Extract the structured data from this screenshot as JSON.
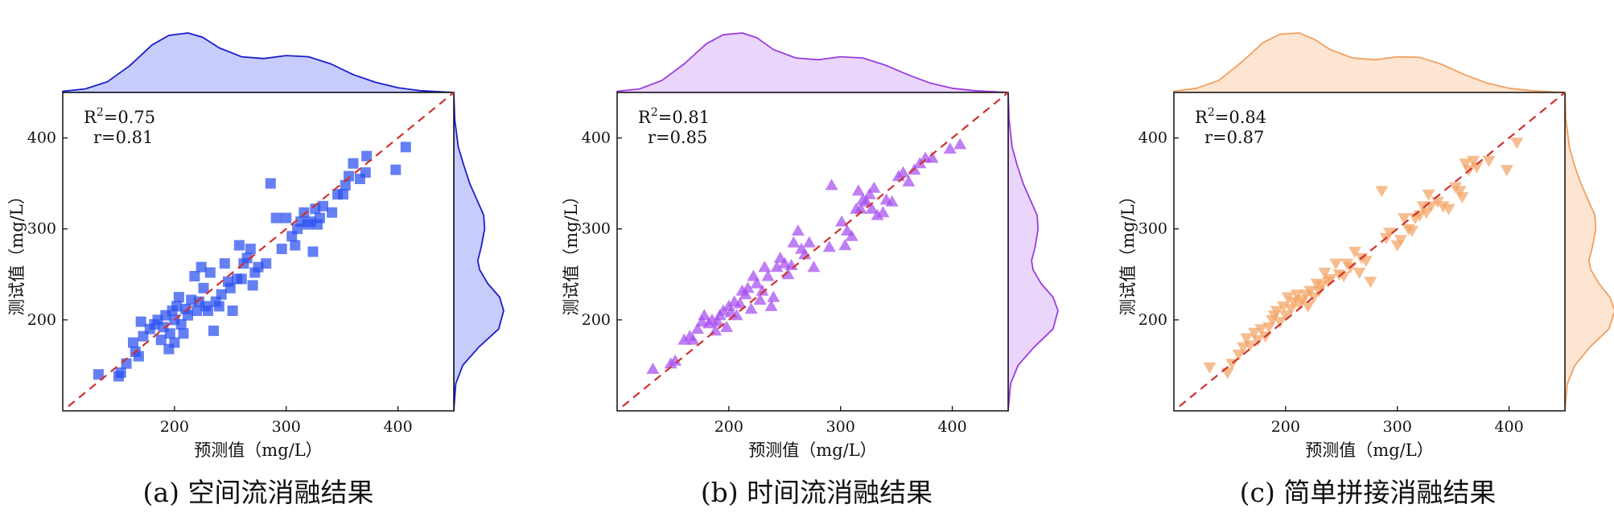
{
  "chart_data": [
    {
      "type": "scatter",
      "id": "a",
      "caption": "(a) 空间流消融结果",
      "xlabel": "预测值（mg/L）",
      "ylabel": "测试值（mg/L）",
      "xlim": [
        100,
        450
      ],
      "ylim": [
        100,
        450
      ],
      "xticks": [
        200,
        300,
        400
      ],
      "yticks": [
        200,
        300,
        400
      ],
      "stats": {
        "r2_prefix": "R",
        "r2_exp": "2",
        "r2_value": "=0.75",
        "r": "r=0.81"
      },
      "marker": "square",
      "color": "#2a4ff0",
      "edge_color": "#1a1ec8",
      "fill_color": "#c8ccfb",
      "points": [
        [
          132,
          140
        ],
        [
          150,
          138
        ],
        [
          152,
          142
        ],
        [
          157,
          152
        ],
        [
          163,
          175
        ],
        [
          165,
          165
        ],
        [
          168,
          160
        ],
        [
          170,
          198
        ],
        [
          172,
          182
        ],
        [
          178,
          190
        ],
        [
          182,
          195
        ],
        [
          185,
          200
        ],
        [
          188,
          178
        ],
        [
          190,
          192
        ],
        [
          192,
          205
        ],
        [
          195,
          168
        ],
        [
          196,
          185
        ],
        [
          198,
          210
        ],
        [
          200,
          175
        ],
        [
          200,
          200
        ],
        [
          202,
          215
        ],
        [
          204,
          225
        ],
        [
          206,
          195
        ],
        [
          208,
          185
        ],
        [
          210,
          212
        ],
        [
          212,
          205
        ],
        [
          215,
          222
        ],
        [
          218,
          248
        ],
        [
          220,
          210
        ],
        [
          222,
          220
        ],
        [
          224,
          258
        ],
        [
          226,
          235
        ],
        [
          228,
          215
        ],
        [
          230,
          210
        ],
        [
          232,
          252
        ],
        [
          235,
          188
        ],
        [
          237,
          220
        ],
        [
          240,
          215
        ],
        [
          242,
          228
        ],
        [
          245,
          262
        ],
        [
          248,
          242
        ],
        [
          250,
          235
        ],
        [
          252,
          210
        ],
        [
          256,
          245
        ],
        [
          258,
          282
        ],
        [
          260,
          245
        ],
        [
          262,
          262
        ],
        [
          265,
          268
        ],
        [
          268,
          278
        ],
        [
          270,
          238
        ],
        [
          272,
          252
        ],
        [
          275,
          258
        ],
        [
          282,
          262
        ],
        [
          286,
          350
        ],
        [
          291,
          312
        ],
        [
          296,
          278
        ],
        [
          300,
          312
        ],
        [
          305,
          292
        ],
        [
          308,
          282
        ],
        [
          310,
          300
        ],
        [
          313,
          308
        ],
        [
          316,
          318
        ],
        [
          319,
          305
        ],
        [
          322,
          308
        ],
        [
          324,
          275
        ],
        [
          326,
          322
        ],
        [
          328,
          305
        ],
        [
          330,
          312
        ],
        [
          333,
          325
        ],
        [
          341,
          318
        ],
        [
          346,
          338
        ],
        [
          351,
          338
        ],
        [
          353,
          348
        ],
        [
          356,
          358
        ],
        [
          360,
          372
        ],
        [
          366,
          355
        ],
        [
          371,
          362
        ],
        [
          372,
          380
        ],
        [
          398,
          365
        ],
        [
          407,
          390
        ]
      ],
      "x_density": [
        [
          100,
          0.02
        ],
        [
          120,
          0.06
        ],
        [
          140,
          0.18
        ],
        [
          160,
          0.45
        ],
        [
          180,
          0.8
        ],
        [
          195,
          0.96
        ],
        [
          212,
          1.0
        ],
        [
          225,
          0.93
        ],
        [
          240,
          0.75
        ],
        [
          260,
          0.6
        ],
        [
          280,
          0.57
        ],
        [
          300,
          0.62
        ],
        [
          320,
          0.6
        ],
        [
          340,
          0.48
        ],
        [
          360,
          0.3
        ],
        [
          380,
          0.17
        ],
        [
          400,
          0.08
        ],
        [
          420,
          0.03
        ],
        [
          450,
          0.0
        ]
      ],
      "y_density": [
        [
          100,
          0.0
        ],
        [
          130,
          0.04
        ],
        [
          150,
          0.18
        ],
        [
          170,
          0.5
        ],
        [
          190,
          0.9
        ],
        [
          210,
          1.0
        ],
        [
          225,
          0.92
        ],
        [
          240,
          0.68
        ],
        [
          255,
          0.52
        ],
        [
          265,
          0.48
        ],
        [
          280,
          0.55
        ],
        [
          300,
          0.62
        ],
        [
          315,
          0.6
        ],
        [
          330,
          0.48
        ],
        [
          350,
          0.32
        ],
        [
          370,
          0.2
        ],
        [
          390,
          0.09
        ],
        [
          420,
          0.02
        ],
        [
          450,
          0.0
        ]
      ]
    },
    {
      "type": "scatter",
      "id": "b",
      "caption": "(b) 时间流消融结果",
      "xlabel": "预测值（mg/L）",
      "ylabel": "测试值（mg/L）",
      "xlim": [
        100,
        450
      ],
      "ylim": [
        100,
        450
      ],
      "xticks": [
        200,
        300,
        400
      ],
      "yticks": [
        200,
        300,
        400
      ],
      "stats": {
        "r2_prefix": "R",
        "r2_exp": "2",
        "r2_value": "=0.81",
        "r": "r=0.85"
      },
      "marker": "triangle-up",
      "color": "#a64df0",
      "edge_color": "#9a3ee0",
      "fill_color": "#ead5fb",
      "points": [
        [
          132,
          146
        ],
        [
          148,
          152
        ],
        [
          152,
          155
        ],
        [
          160,
          178
        ],
        [
          165,
          182
        ],
        [
          168,
          178
        ],
        [
          172,
          190
        ],
        [
          176,
          198
        ],
        [
          178,
          205
        ],
        [
          182,
          196
        ],
        [
          185,
          200
        ],
        [
          188,
          188
        ],
        [
          190,
          198
        ],
        [
          192,
          205
        ],
        [
          195,
          210
        ],
        [
          198,
          192
        ],
        [
          200,
          215
        ],
        [
          202,
          208
        ],
        [
          205,
          220
        ],
        [
          207,
          205
        ],
        [
          210,
          218
        ],
        [
          212,
          232
        ],
        [
          215,
          228
        ],
        [
          217,
          235
        ],
        [
          220,
          212
        ],
        [
          222,
          248
        ],
        [
          225,
          240
        ],
        [
          228,
          222
        ],
        [
          230,
          232
        ],
        [
          232,
          258
        ],
        [
          235,
          248
        ],
        [
          238,
          215
        ],
        [
          240,
          225
        ],
        [
          243,
          258
        ],
        [
          246,
          268
        ],
        [
          250,
          262
        ],
        [
          253,
          250
        ],
        [
          256,
          260
        ],
        [
          258,
          285
        ],
        [
          262,
          298
        ],
        [
          265,
          278
        ],
        [
          268,
          272
        ],
        [
          272,
          285
        ],
        [
          276,
          258
        ],
        [
          290,
          280
        ],
        [
          292,
          348
        ],
        [
          301,
          308
        ],
        [
          304,
          282
        ],
        [
          306,
          298
        ],
        [
          310,
          292
        ],
        [
          314,
          322
        ],
        [
          316,
          342
        ],
        [
          318,
          322
        ],
        [
          320,
          332
        ],
        [
          323,
          330
        ],
        [
          326,
          338
        ],
        [
          328,
          322
        ],
        [
          330,
          345
        ],
        [
          333,
          315
        ],
        [
          338,
          318
        ],
        [
          341,
          332
        ],
        [
          346,
          330
        ],
        [
          352,
          358
        ],
        [
          356,
          362
        ],
        [
          361,
          352
        ],
        [
          366,
          365
        ],
        [
          371,
          372
        ],
        [
          376,
          378
        ],
        [
          382,
          378
        ],
        [
          398,
          388
        ],
        [
          407,
          393
        ]
      ],
      "x_density": [
        [
          100,
          0.02
        ],
        [
          120,
          0.06
        ],
        [
          140,
          0.2
        ],
        [
          160,
          0.48
        ],
        [
          180,
          0.82
        ],
        [
          195,
          0.97
        ],
        [
          212,
          1.0
        ],
        [
          225,
          0.92
        ],
        [
          240,
          0.72
        ],
        [
          260,
          0.58
        ],
        [
          280,
          0.55
        ],
        [
          300,
          0.6
        ],
        [
          320,
          0.58
        ],
        [
          340,
          0.46
        ],
        [
          360,
          0.3
        ],
        [
          380,
          0.16
        ],
        [
          400,
          0.07
        ],
        [
          420,
          0.03
        ],
        [
          450,
          0.0
        ]
      ],
      "y_density": [
        [
          100,
          0.0
        ],
        [
          130,
          0.05
        ],
        [
          150,
          0.2
        ],
        [
          170,
          0.52
        ],
        [
          190,
          0.9
        ],
        [
          210,
          1.0
        ],
        [
          225,
          0.9
        ],
        [
          240,
          0.66
        ],
        [
          255,
          0.5
        ],
        [
          265,
          0.47
        ],
        [
          280,
          0.54
        ],
        [
          300,
          0.6
        ],
        [
          315,
          0.58
        ],
        [
          330,
          0.46
        ],
        [
          350,
          0.3
        ],
        [
          370,
          0.18
        ],
        [
          390,
          0.08
        ],
        [
          420,
          0.02
        ],
        [
          450,
          0.0
        ]
      ]
    },
    {
      "type": "scatter",
      "id": "c",
      "caption": "(c) 简单拼接消融结果",
      "xlabel": "预测值（mg/L）",
      "ylabel": "测试值（mg/L）",
      "xlim": [
        100,
        450
      ],
      "ylim": [
        100,
        450
      ],
      "xticks": [
        200,
        300,
        400
      ],
      "yticks": [
        200,
        300,
        400
      ],
      "stats": {
        "r2_prefix": "R",
        "r2_exp": "2",
        "r2_value": "=0.84",
        "r": "r=0.87"
      },
      "marker": "triangle-down",
      "color": "#f4a464",
      "edge_color": "#f0a060",
      "fill_color": "#fde5d2",
      "points": [
        [
          132,
          148
        ],
        [
          148,
          142
        ],
        [
          152,
          152
        ],
        [
          158,
          162
        ],
        [
          162,
          170
        ],
        [
          165,
          180
        ],
        [
          168,
          172
        ],
        [
          172,
          186
        ],
        [
          175,
          178
        ],
        [
          178,
          190
        ],
        [
          182,
          182
        ],
        [
          185,
          192
        ],
        [
          188,
          200
        ],
        [
          190,
          205
        ],
        [
          192,
          210
        ],
        [
          195,
          198
        ],
        [
          198,
          215
        ],
        [
          200,
          205
        ],
        [
          202,
          225
        ],
        [
          205,
          212
        ],
        [
          207,
          220
        ],
        [
          210,
          228
        ],
        [
          212,
          218
        ],
        [
          215,
          222
        ],
        [
          218,
          228
        ],
        [
          220,
          215
        ],
        [
          222,
          232
        ],
        [
          225,
          225
        ],
        [
          228,
          240
        ],
        [
          230,
          232
        ],
        [
          232,
          238
        ],
        [
          235,
          252
        ],
        [
          238,
          242
        ],
        [
          240,
          245
        ],
        [
          245,
          262
        ],
        [
          248,
          250
        ],
        [
          252,
          248
        ],
        [
          255,
          262
        ],
        [
          258,
          258
        ],
        [
          262,
          275
        ],
        [
          266,
          252
        ],
        [
          268,
          268
        ],
        [
          272,
          265
        ],
        [
          276,
          242
        ],
        [
          286,
          342
        ],
        [
          290,
          290
        ],
        [
          293,
          296
        ],
        [
          300,
          282
        ],
        [
          303,
          288
        ],
        [
          306,
          312
        ],
        [
          310,
          300
        ],
        [
          313,
          298
        ],
        [
          316,
          312
        ],
        [
          320,
          315
        ],
        [
          323,
          325
        ],
        [
          326,
          318
        ],
        [
          328,
          338
        ],
        [
          330,
          325
        ],
        [
          336,
          330
        ],
        [
          341,
          325
        ],
        [
          346,
          322
        ],
        [
          352,
          346
        ],
        [
          356,
          342
        ],
        [
          358,
          335
        ],
        [
          361,
          372
        ],
        [
          364,
          365
        ],
        [
          368,
          375
        ],
        [
          371,
          368
        ],
        [
          382,
          375
        ],
        [
          398,
          365
        ],
        [
          407,
          395
        ]
      ],
      "x_density": [
        [
          100,
          0.02
        ],
        [
          120,
          0.07
        ],
        [
          140,
          0.2
        ],
        [
          160,
          0.5
        ],
        [
          180,
          0.84
        ],
        [
          195,
          0.98
        ],
        [
          212,
          1.0
        ],
        [
          225,
          0.9
        ],
        [
          240,
          0.72
        ],
        [
          260,
          0.58
        ],
        [
          280,
          0.55
        ],
        [
          300,
          0.6
        ],
        [
          320,
          0.59
        ],
        [
          340,
          0.47
        ],
        [
          360,
          0.3
        ],
        [
          380,
          0.16
        ],
        [
          400,
          0.07
        ],
        [
          420,
          0.03
        ],
        [
          450,
          0.0
        ]
      ],
      "y_density": [
        [
          100,
          0.0
        ],
        [
          130,
          0.05
        ],
        [
          150,
          0.2
        ],
        [
          170,
          0.5
        ],
        [
          190,
          0.88
        ],
        [
          210,
          1.0
        ],
        [
          225,
          0.9
        ],
        [
          240,
          0.68
        ],
        [
          255,
          0.52
        ],
        [
          265,
          0.48
        ],
        [
          280,
          0.55
        ],
        [
          300,
          0.62
        ],
        [
          315,
          0.6
        ],
        [
          330,
          0.48
        ],
        [
          350,
          0.32
        ],
        [
          370,
          0.19
        ],
        [
          390,
          0.09
        ],
        [
          420,
          0.02
        ],
        [
          450,
          0.0
        ]
      ]
    }
  ]
}
